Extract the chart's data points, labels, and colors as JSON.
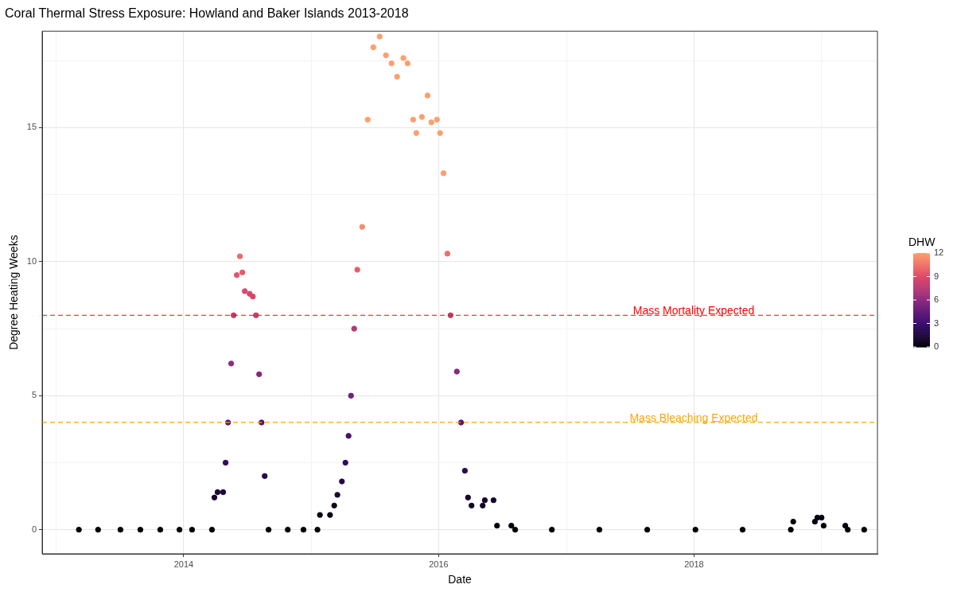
{
  "chart_data": {
    "type": "scatter",
    "title": "Coral Thermal Stress Exposure: Howland and Baker Islands 2013-2018",
    "xlabel": "Date",
    "ylabel": "Degree Heating Weeks",
    "clabel": "DHW",
    "x": [
      "2013-03-07",
      "2013-05-01",
      "2013-07-04",
      "2013-08-30",
      "2013-10-26",
      "2013-12-20",
      "2014-01-25",
      "2014-03-23",
      "2014-03-30",
      "2014-04-08",
      "2014-04-24",
      "2014-05-01",
      "2014-05-08",
      "2014-05-17",
      "2014-05-24",
      "2014-06-02",
      "2014-06-11",
      "2014-06-18",
      "2014-06-25",
      "2014-07-09",
      "2014-07-18",
      "2014-07-27",
      "2014-08-05",
      "2014-08-12",
      "2014-08-21",
      "2014-09-01",
      "2014-10-26",
      "2014-12-10",
      "2015-01-19",
      "2015-01-26",
      "2015-02-24",
      "2015-03-08",
      "2015-03-17",
      "2015-03-30",
      "2015-04-09",
      "2015-04-18",
      "2015-04-25",
      "2015-05-04",
      "2015-05-13",
      "2015-05-27",
      "2015-06-12",
      "2015-06-28",
      "2015-07-16",
      "2015-08-03",
      "2015-08-19",
      "2015-09-04",
      "2015-09-22",
      "2015-10-04",
      "2015-10-20",
      "2015-10-29",
      "2015-11-14",
      "2015-11-30",
      "2015-12-11",
      "2015-12-27",
      "2016-01-05",
      "2016-01-15",
      "2016-01-26",
      "2016-02-04",
      "2016-02-22",
      "2016-03-05",
      "2016-03-16",
      "2016-03-25",
      "2016-04-04",
      "2016-05-06",
      "2016-05-12",
      "2016-06-06",
      "2016-06-16",
      "2016-07-27",
      "2016-08-07",
      "2016-11-20",
      "2017-04-05",
      "2017-08-20",
      "2018-01-05",
      "2018-05-20",
      "2018-10-05",
      "2018-10-12",
      "2018-12-13",
      "2018-12-20",
      "2019-01-01",
      "2019-01-07",
      "2019-03-10",
      "2019-03-17",
      "2019-05-03"
    ],
    "values": [
      0,
      0,
      0,
      0,
      0,
      0,
      0,
      0,
      1.2,
      1.4,
      1.4,
      2.5,
      4.0,
      6.2,
      8.0,
      9.5,
      10.2,
      9.6,
      8.9,
      8.8,
      8.7,
      8.0,
      5.8,
      4.0,
      2.0,
      0,
      0,
      0,
      0,
      0.55,
      0.55,
      0.9,
      1.3,
      1.8,
      2.5,
      3.5,
      5.0,
      7.5,
      9.7,
      11.3,
      15.3,
      18.0,
      18.4,
      17.7,
      17.4,
      16.9,
      17.6,
      17.4,
      15.3,
      14.8,
      15.4,
      16.2,
      15.2,
      15.3,
      14.8,
      13.3,
      10.3,
      8.0,
      5.9,
      4.0,
      2.2,
      1.2,
      0.9,
      0.9,
      1.1,
      1.1,
      0.15,
      0.15,
      0,
      0,
      0,
      0,
      0,
      0,
      0,
      0.3,
      0.3,
      0.45,
      0.45,
      0.15,
      0.15,
      0,
      0
    ],
    "cvalues": [
      0,
      0,
      0,
      0,
      0,
      0,
      0,
      0,
      1.2,
      1.4,
      1.4,
      2.5,
      4.0,
      6.2,
      8.0,
      9.5,
      10.2,
      9.6,
      8.9,
      8.8,
      8.7,
      8.0,
      5.8,
      4.0,
      2.0,
      0,
      0,
      0,
      0,
      0.55,
      0.55,
      0.9,
      1.3,
      1.8,
      2.5,
      3.5,
      5.0,
      7.5,
      9.7,
      11.3,
      15.3,
      18.0,
      18.4,
      17.7,
      17.4,
      16.9,
      17.6,
      17.4,
      15.3,
      14.8,
      15.4,
      16.2,
      15.2,
      15.3,
      14.8,
      13.3,
      10.3,
      8.0,
      5.9,
      4.0,
      2.2,
      1.2,
      0.9,
      0.9,
      1.1,
      1.1,
      0.15,
      0.15,
      0,
      0,
      0,
      0,
      0,
      0,
      0,
      0.3,
      0.3,
      0.45,
      0.45,
      0.15,
      0.15,
      0,
      0
    ],
    "clim": [
      0,
      12
    ],
    "cticks": [
      0,
      3,
      6,
      9,
      12
    ],
    "xlim": [
      "2012-11-22",
      "2019-06-10"
    ],
    "xticks": [
      {
        "value": "2013-01-01",
        "label": null
      },
      {
        "value": "2014-01-01",
        "label": "2014"
      },
      {
        "value": "2015-01-01",
        "label": null
      },
      {
        "value": "2016-01-01",
        "label": "2016"
      },
      {
        "value": "2017-01-01",
        "label": null
      },
      {
        "value": "2018-01-01",
        "label": "2018"
      },
      {
        "value": "2019-01-01",
        "label": null
      }
    ],
    "ylim": [
      -0.9,
      18.6
    ],
    "yticks": [
      0,
      {
        "value": 2.5,
        "label": null
      },
      5,
      {
        "value": 7.5,
        "label": null
      },
      10,
      {
        "value": 12.5,
        "label": null
      },
      15,
      {
        "value": 17.5,
        "label": null
      }
    ],
    "ref_lines": [
      {
        "axis": "y",
        "value": 8,
        "label": "Mass Mortality Expected",
        "color": "#ff0000",
        "line_style": "dashed"
      },
      {
        "axis": "y",
        "value": 4,
        "label": "Mass Bleaching Expected",
        "color": "#ffa500",
        "line_style": "dashed"
      }
    ],
    "grid": true,
    "marker": "circle",
    "legend": false
  }
}
